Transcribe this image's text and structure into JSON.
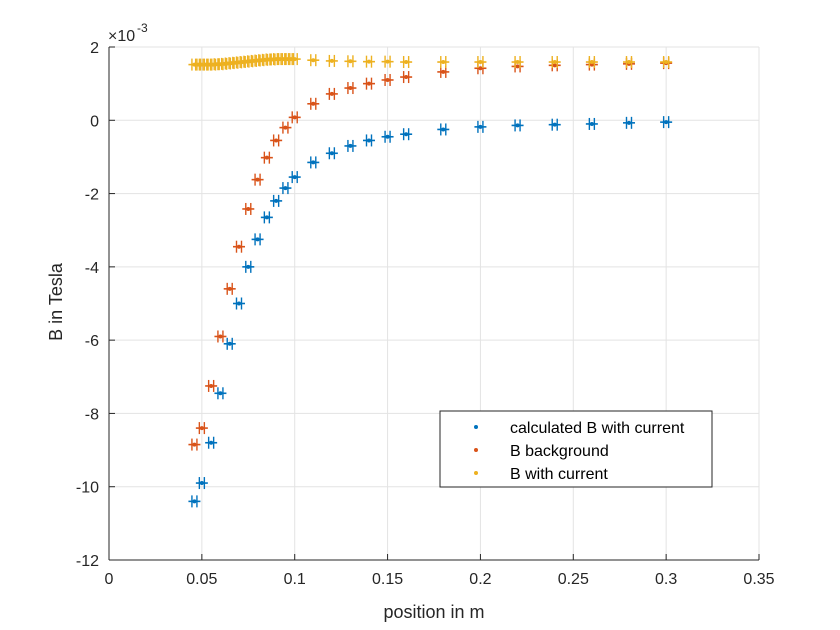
{
  "chart_data": {
    "type": "scatter",
    "xlabel": "position in m",
    "ylabel": "B in Tesla",
    "y_exponent_label": "×10",
    "y_exponent_power": "-3",
    "xlim": [
      0,
      0.35
    ],
    "ylim": [
      -12,
      2
    ],
    "x_ticks": [
      "0",
      "0.05",
      "0.1",
      "0.15",
      "0.2",
      "0.25",
      "0.3",
      "0.35"
    ],
    "y_ticks": [
      "2",
      "0",
      "-2",
      "-4",
      "-6",
      "-8",
      "-10",
      "-12"
    ],
    "grid": true,
    "legend_position": "bottom-right",
    "series": [
      {
        "name": "calculated B with current",
        "color": "#0072BD",
        "x": [
          0.046,
          0.05,
          0.055,
          0.06,
          0.065,
          0.07,
          0.075,
          0.08,
          0.085,
          0.09,
          0.095,
          0.1,
          0.11,
          0.12,
          0.13,
          0.14,
          0.15,
          0.16,
          0.18,
          0.2,
          0.22,
          0.24,
          0.26,
          0.28,
          0.3
        ],
        "y": [
          -10.4,
          -9.9,
          -8.8,
          -7.45,
          -6.1,
          -5.0,
          -4.0,
          -3.25,
          -2.65,
          -2.2,
          -1.85,
          -1.55,
          -1.15,
          -0.9,
          -0.7,
          -0.55,
          -0.45,
          -0.38,
          -0.25,
          -0.18,
          -0.14,
          -0.12,
          -0.1,
          -0.07,
          -0.05
        ]
      },
      {
        "name": "B background",
        "color": "#D95319",
        "x": [
          0.046,
          0.05,
          0.055,
          0.06,
          0.065,
          0.07,
          0.075,
          0.08,
          0.085,
          0.09,
          0.095,
          0.1,
          0.11,
          0.12,
          0.13,
          0.14,
          0.15,
          0.16,
          0.18,
          0.2,
          0.22,
          0.24,
          0.26,
          0.28,
          0.3
        ],
        "y": [
          -8.85,
          -8.4,
          -7.25,
          -5.9,
          -4.6,
          -3.45,
          -2.42,
          -1.62,
          -1.02,
          -0.55,
          -0.2,
          0.08,
          0.45,
          0.72,
          0.88,
          1.0,
          1.1,
          1.18,
          1.32,
          1.42,
          1.47,
          1.5,
          1.52,
          1.54,
          1.56
        ]
      },
      {
        "name": "B with current",
        "color": "#EDB120",
        "x": [
          0.046,
          0.048,
          0.05,
          0.052,
          0.054,
          0.056,
          0.058,
          0.06,
          0.062,
          0.064,
          0.066,
          0.068,
          0.07,
          0.072,
          0.074,
          0.076,
          0.078,
          0.08,
          0.082,
          0.084,
          0.086,
          0.088,
          0.09,
          0.092,
          0.094,
          0.096,
          0.098,
          0.1,
          0.11,
          0.12,
          0.13,
          0.14,
          0.15,
          0.16,
          0.18,
          0.2,
          0.22,
          0.24,
          0.26,
          0.28,
          0.3
        ],
        "y": [
          1.52,
          1.52,
          1.52,
          1.52,
          1.52,
          1.52,
          1.53,
          1.53,
          1.54,
          1.55,
          1.56,
          1.57,
          1.58,
          1.59,
          1.6,
          1.61,
          1.62,
          1.63,
          1.64,
          1.65,
          1.66,
          1.66,
          1.67,
          1.67,
          1.67,
          1.67,
          1.67,
          1.67,
          1.64,
          1.62,
          1.61,
          1.6,
          1.6,
          1.59,
          1.59,
          1.59,
          1.59,
          1.59,
          1.59,
          1.59,
          1.59
        ]
      }
    ]
  }
}
